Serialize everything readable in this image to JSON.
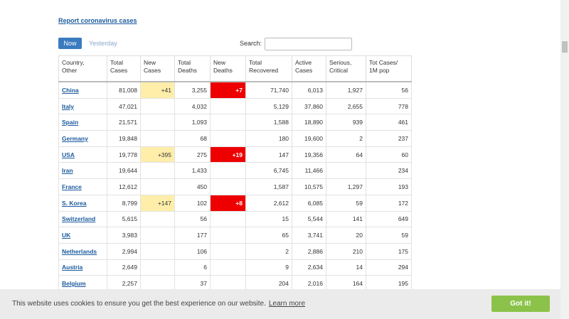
{
  "page": {
    "link": "Report coronavirus cases",
    "tabs": [
      "Now",
      "Yesterday"
    ],
    "search_label": "Search:",
    "table": {
      "headers": [
        [
          "Country,",
          "Other"
        ],
        [
          "Total",
          "Cases"
        ],
        [
          "New",
          "Cases"
        ],
        [
          "Total",
          "Deaths"
        ],
        [
          "New",
          "Deaths"
        ],
        [
          "Total",
          "Recovered"
        ],
        [
          "Active",
          "Cases"
        ],
        [
          "Serious,",
          "Critical"
        ],
        [
          "Tot Cases/",
          "1M pop"
        ]
      ],
      "rows": [
        [
          "China",
          "81,008",
          "+41",
          "3,255",
          "+7",
          "71,740",
          "6,013",
          "1,927",
          "56"
        ],
        [
          "Italy",
          "47,021",
          null,
          "4,032",
          null,
          "5,129",
          "37,860",
          "2,655",
          "778"
        ],
        [
          "Spain",
          "21,571",
          null,
          "1,093",
          null,
          "1,588",
          "18,890",
          "939",
          "461"
        ],
        [
          "Germany",
          "19,848",
          null,
          "68",
          null,
          "180",
          "19,600",
          "2",
          "237"
        ],
        [
          "USA",
          "19,778",
          "+395",
          "275",
          "+19",
          "147",
          "19,356",
          "64",
          "60"
        ],
        [
          "Iran",
          "19,644",
          null,
          "1,433",
          null,
          "6,745",
          "11,466",
          null,
          "234"
        ],
        [
          "France",
          "12,612",
          null,
          "450",
          null,
          "1,587",
          "10,575",
          "1,297",
          "193"
        ],
        [
          "S. Korea",
          "8,799",
          "+147",
          "102",
          "+8",
          "2,612",
          "6,085",
          "59",
          "172"
        ],
        [
          "Switzerland",
          "5,615",
          null,
          "56",
          null,
          "15",
          "5,544",
          "141",
          "649"
        ],
        [
          "UK",
          "3,983",
          null,
          "177",
          null,
          "65",
          "3,741",
          "20",
          "59"
        ],
        [
          "Netherlands",
          "2,994",
          null,
          "106",
          null,
          "2",
          "2,886",
          "210",
          "175"
        ],
        [
          "Austria",
          "2,649",
          null,
          "6",
          null,
          "9",
          "2,634",
          "14",
          "294"
        ],
        [
          "Belgium",
          "2,257",
          null,
          "37",
          null,
          "204",
          "2,016",
          "164",
          "195"
        ]
      ]
    },
    "cookie": {
      "text": "This website uses cookies to ensure you get the best experience on our website.",
      "learn_more": "Learn more",
      "button": "Got it!"
    }
  }
}
